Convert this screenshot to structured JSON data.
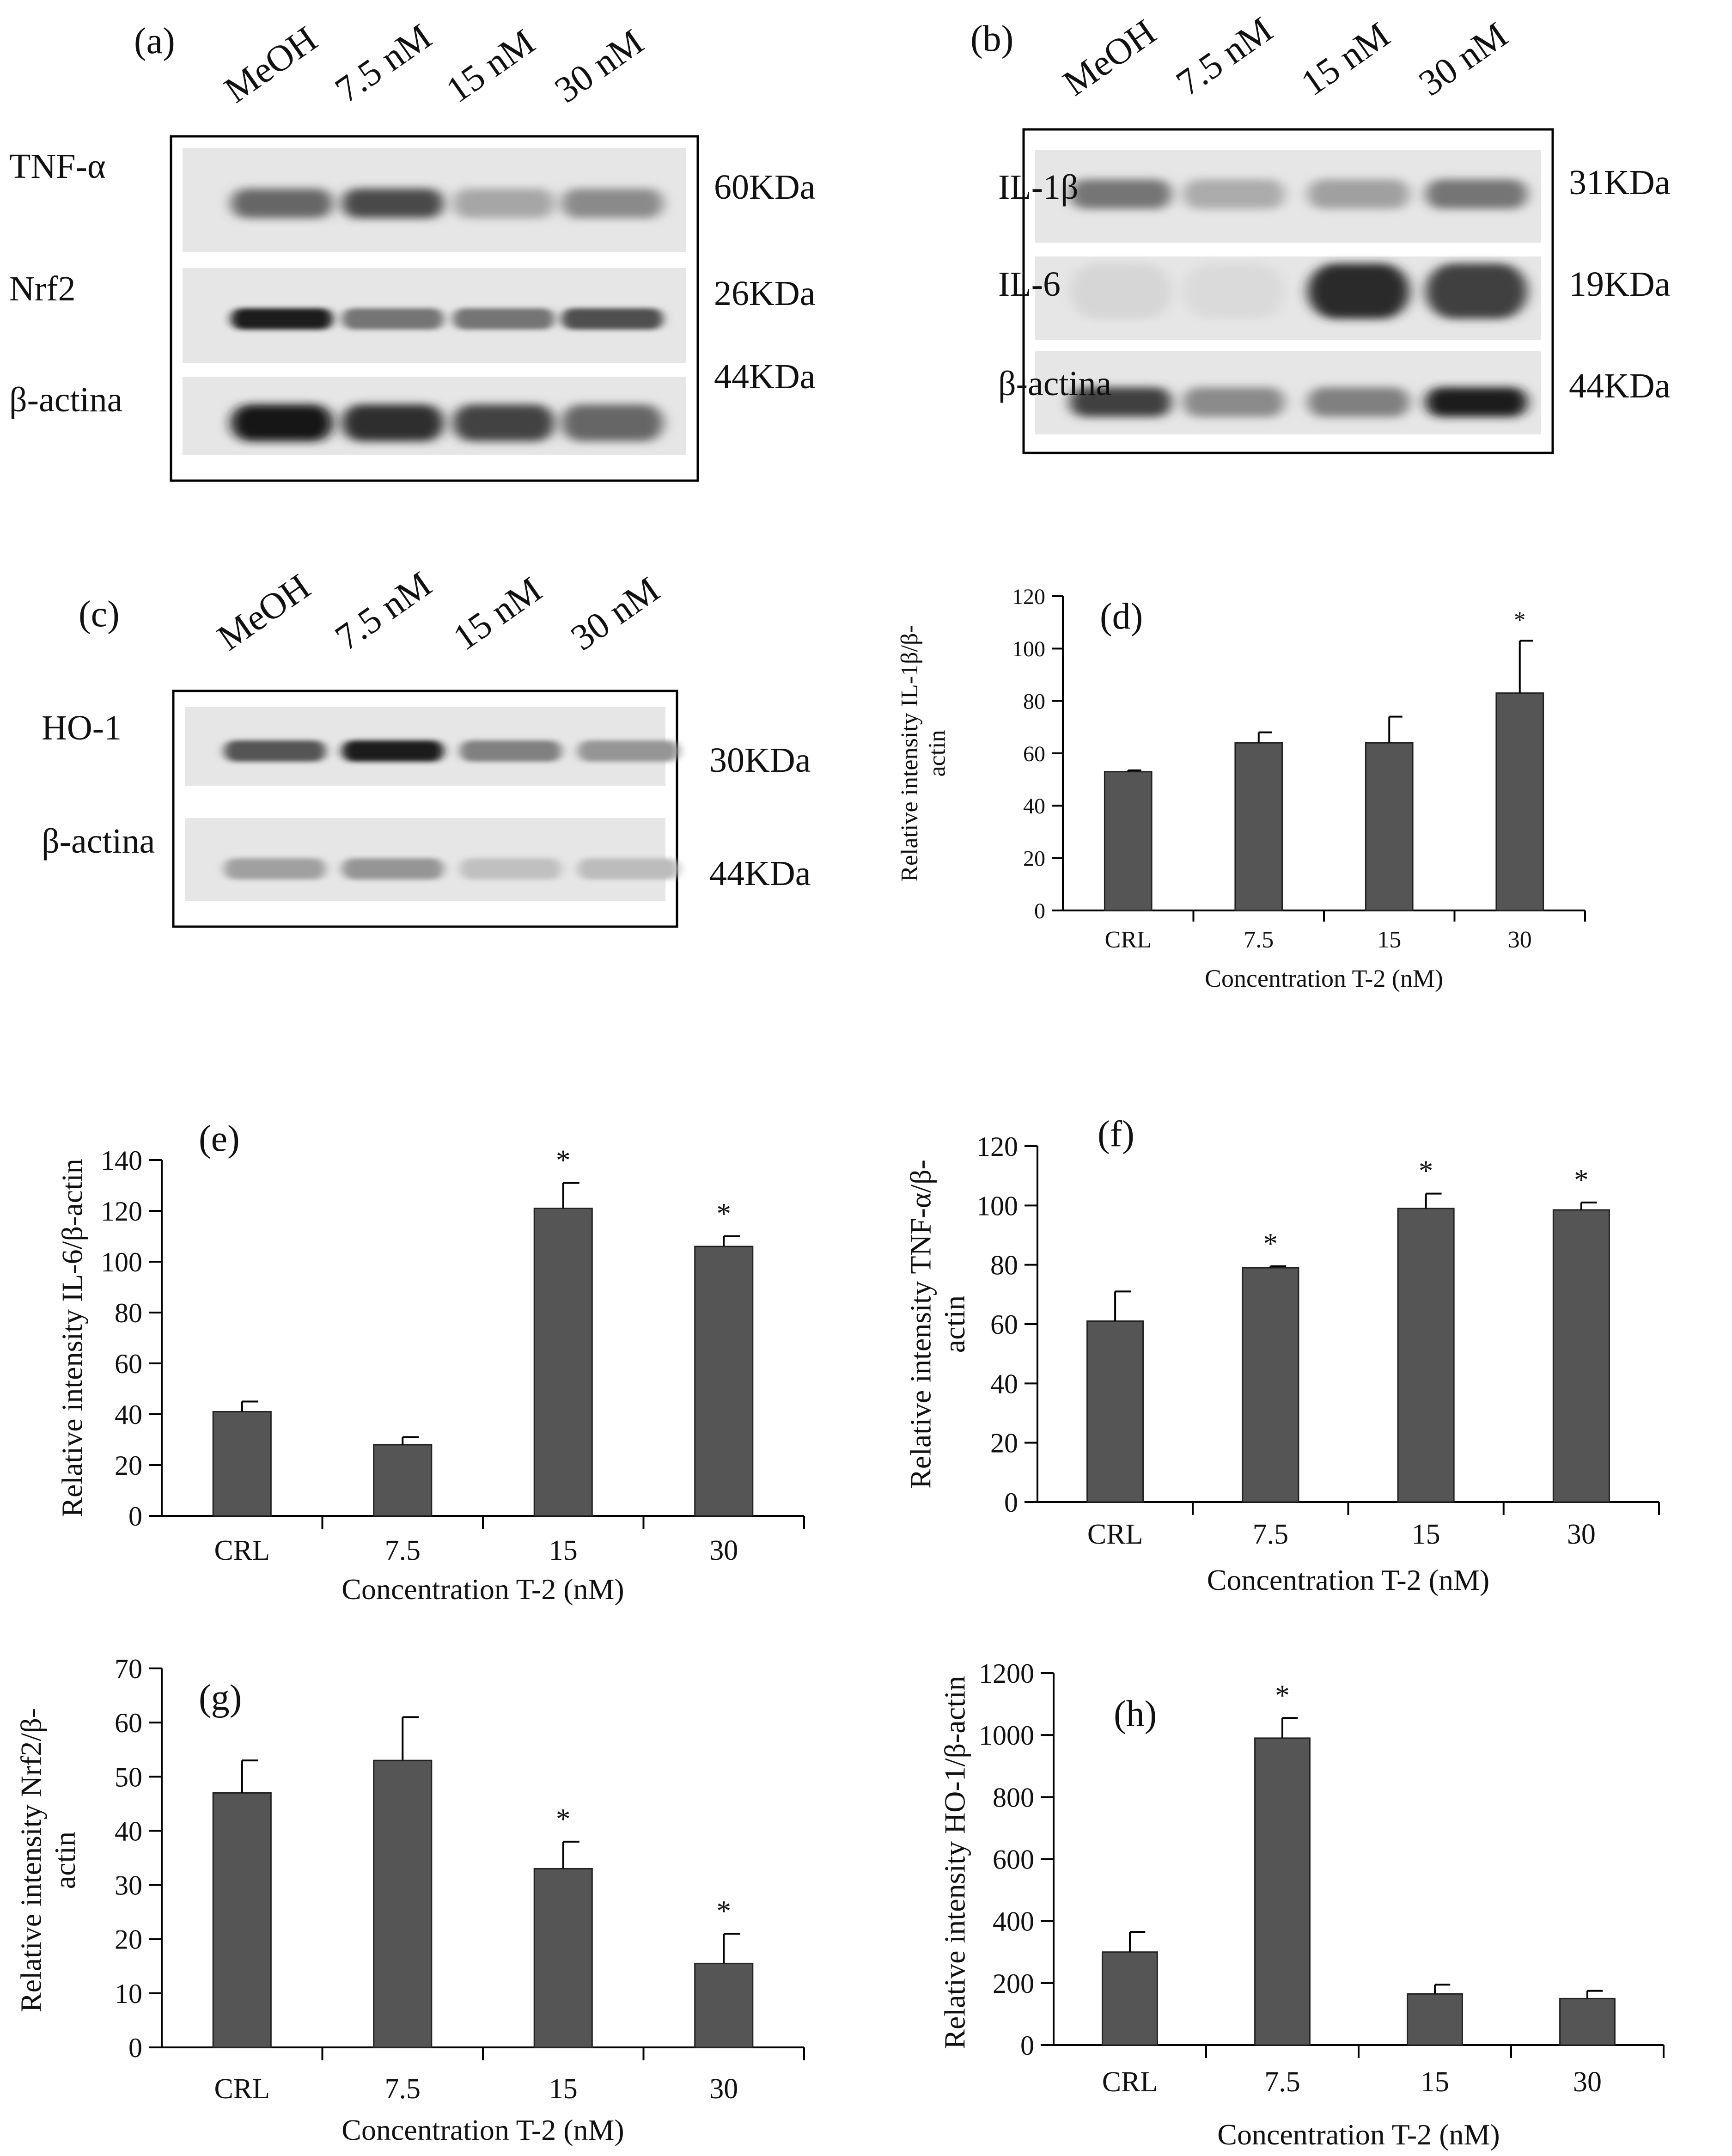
{
  "figure": {
    "colors": {
      "bar": "#555555",
      "axis": "#000000",
      "text": "#111111"
    },
    "blots": [
      {
        "label": "(a)",
        "lanes": [
          "MeOH",
          "7.5 nM",
          "15 nM",
          "30 nM"
        ],
        "rows": [
          {
            "protein": "TNF-α",
            "size": "60KDa",
            "intensity": [
              0.62,
              0.75,
              0.32,
              0.45
            ],
            "band": "broad"
          },
          {
            "protein": "Nrf2",
            "size": "26KDa",
            "intensity": [
              0.95,
              0.55,
              0.55,
              0.72
            ],
            "band": "sharp"
          },
          {
            "protein": "β-actina",
            "size": "44KDa",
            "intensity": [
              1.0,
              0.88,
              0.78,
              0.62
            ],
            "band": "thick"
          }
        ]
      },
      {
        "label": "(b)",
        "lanes": [
          "MeOH",
          "7.5 nM",
          "15 nM",
          "30 nM"
        ],
        "rows": [
          {
            "protein": "IL-1β",
            "size": "31KDa",
            "intensity": [
              0.55,
              0.3,
              0.35,
              0.55
            ],
            "band": "broad"
          },
          {
            "protein": "IL-6",
            "size": "19KDa",
            "intensity": [
              0.1,
              0.08,
              0.9,
              0.8
            ],
            "band": "smear"
          },
          {
            "protein": "β-actina",
            "size": "44KDa",
            "intensity": [
              0.8,
              0.45,
              0.5,
              0.95
            ],
            "band": "broad"
          }
        ]
      },
      {
        "label": "(c)",
        "lanes": [
          "MeOH",
          "7.5 nM",
          "15 nM",
          "30 nM"
        ],
        "rows": [
          {
            "protein": "HO-1",
            "size": "30KDa",
            "intensity": [
              0.7,
              0.95,
              0.5,
              0.4
            ],
            "band": "sharp"
          },
          {
            "protein": "β-actina",
            "size": "44KDa",
            "intensity": [
              0.35,
              0.4,
              0.2,
              0.22
            ],
            "band": "sharp"
          }
        ]
      }
    ]
  },
  "chart_data": [
    {
      "panel": "(d)",
      "type": "bar",
      "categories": [
        "CRL",
        "7.5",
        "15",
        "30"
      ],
      "values": [
        53,
        64,
        64,
        83
      ],
      "errors": [
        0.5,
        4,
        10,
        20
      ],
      "significance": [
        "",
        "",
        "",
        "*"
      ],
      "title": "",
      "xlabel": "Concentration T-2 (nM)",
      "ylabel": [
        "Relative intensity IL-1β/β-",
        "actin"
      ],
      "ylim": [
        0,
        120
      ],
      "ystep": 20,
      "grid": false
    },
    {
      "panel": "(e)",
      "type": "bar",
      "categories": [
        "CRL",
        "7.5",
        "15",
        "30"
      ],
      "values": [
        41,
        28,
        121,
        106
      ],
      "errors": [
        4,
        3,
        10,
        4
      ],
      "significance": [
        "",
        "",
        "*",
        "*"
      ],
      "title": "",
      "xlabel": "Concentration T-2 (nM)",
      "ylabel": [
        "Relative intensity IL-6/β-actin"
      ],
      "ylim": [
        0,
        140
      ],
      "ystep": 20,
      "grid": false
    },
    {
      "panel": "(f)",
      "type": "bar",
      "categories": [
        "CRL",
        "7.5",
        "15",
        "30"
      ],
      "values": [
        61,
        79,
        99,
        98.5
      ],
      "errors": [
        10,
        0.5,
        5,
        2.5
      ],
      "significance": [
        "",
        "*",
        "*",
        "*"
      ],
      "title": "",
      "xlabel": "Concentration T-2 (nM)",
      "ylabel": [
        "Relative intensity TNF-α/β-",
        "actin"
      ],
      "ylim": [
        0,
        120
      ],
      "ystep": 20,
      "grid": false
    },
    {
      "panel": "(g)",
      "type": "bar",
      "categories": [
        "CRL",
        "7.5",
        "15",
        "30"
      ],
      "values": [
        47,
        53,
        33,
        15.5
      ],
      "errors": [
        6,
        8,
        5,
        5.5
      ],
      "significance": [
        "",
        "",
        "*",
        "*"
      ],
      "title": "",
      "xlabel": "Concentration T-2 (nM)",
      "ylabel": [
        "Relative intensity Nrf2/β-",
        "actin"
      ],
      "ylim": [
        0,
        70
      ],
      "ystep": 10,
      "grid": false
    },
    {
      "panel": "(h)",
      "type": "bar",
      "categories": [
        "CRL",
        "7.5",
        "15",
        "30"
      ],
      "values": [
        300,
        990,
        165,
        150
      ],
      "errors": [
        65,
        65,
        30,
        25
      ],
      "significance": [
        "",
        "*",
        "",
        ""
      ],
      "title": "",
      "xlabel": "Concentration T-2 (nM)",
      "ylabel": [
        "Relative intensity HO-1/β-actin"
      ],
      "ylim": [
        0,
        1200
      ],
      "ystep": 200,
      "grid": false
    }
  ]
}
